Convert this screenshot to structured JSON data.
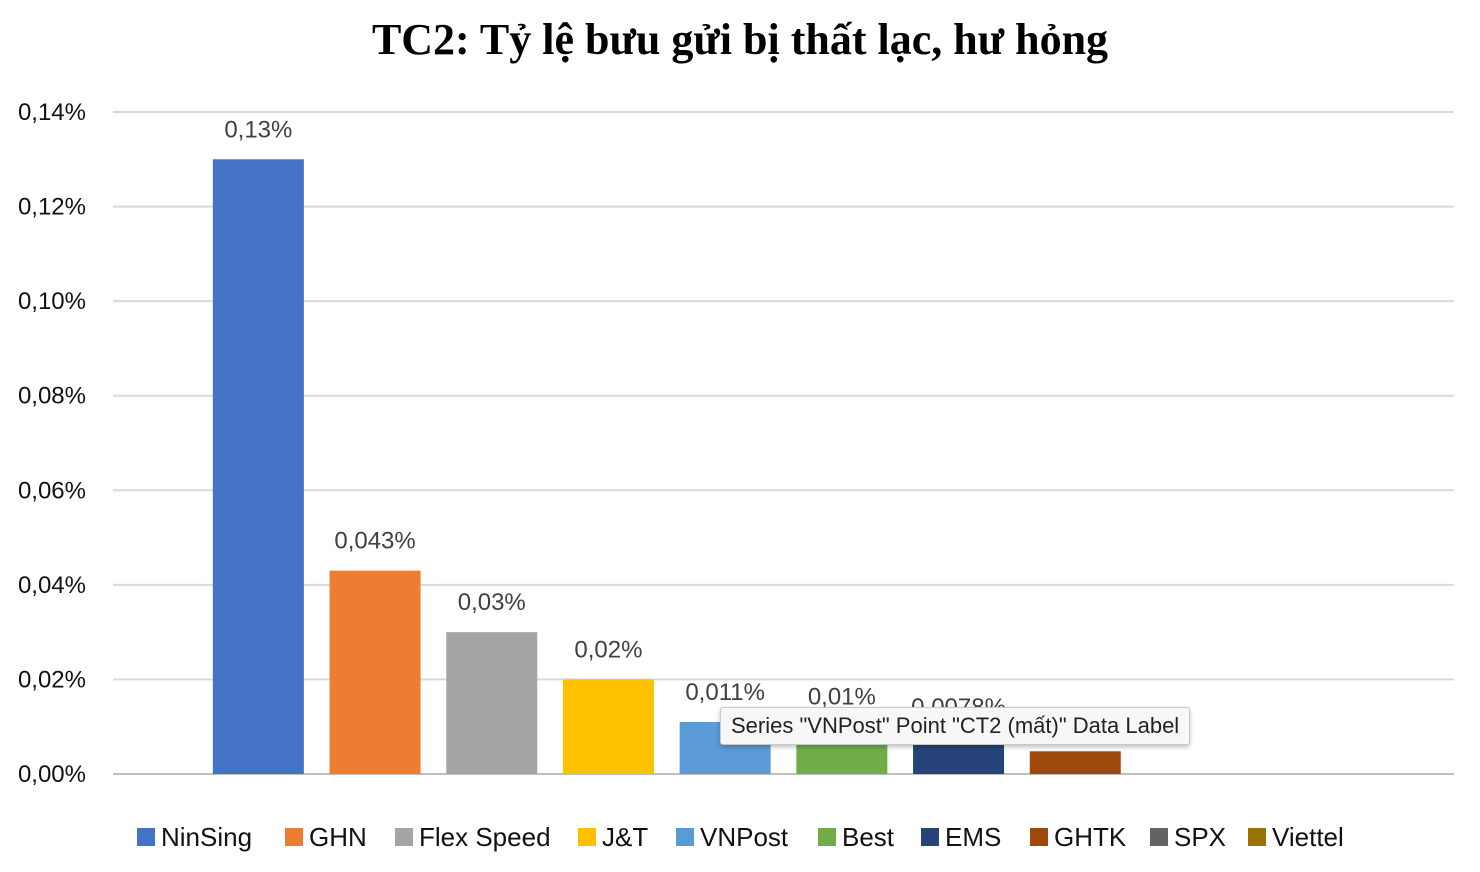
{
  "chart_data": {
    "type": "bar",
    "title": "TC2: Tỷ lệ bưu gửi bị thất lạc, hư hỏng",
    "xlabel": "",
    "ylabel": "",
    "ylim": [
      0,
      0.14
    ],
    "yticks": [
      "0,00%",
      "0,02%",
      "0,04%",
      "0,06%",
      "0,08%",
      "0,10%",
      "0,12%",
      "0,14%"
    ],
    "grid": true,
    "legend_position": "bottom",
    "series": [
      {
        "name": "NinSing",
        "value": 0.13,
        "label": "0,13%",
        "color": "#4472C4"
      },
      {
        "name": "GHN",
        "value": 0.043,
        "label": "0,043%",
        "color": "#ED7D31"
      },
      {
        "name": "Flex Speed",
        "value": 0.03,
        "label": "0,03%",
        "color": "#A5A5A5"
      },
      {
        "name": "J&T",
        "value": 0.02,
        "label": "0,02%",
        "color": "#FFC000"
      },
      {
        "name": "VNPost",
        "value": 0.011,
        "label": "0,011%",
        "color": "#5B9BD5"
      },
      {
        "name": "Best",
        "value": 0.01,
        "label": "0,01%",
        "color": "#70AD47"
      },
      {
        "name": "EMS",
        "value": 0.0078,
        "label": "0,0078%",
        "color": "#264478"
      },
      {
        "name": "GHTK",
        "value": 0.0048,
        "label": "",
        "color": "#9E480E"
      },
      {
        "name": "SPX",
        "value": 0,
        "label": "",
        "color": "#636363"
      },
      {
        "name": "Viettel",
        "value": 0,
        "label": "",
        "color": "#997300"
      }
    ]
  },
  "tooltip": {
    "text": "Series \"VNPost\" Point \"CT2 (mất)\" Data Label"
  }
}
